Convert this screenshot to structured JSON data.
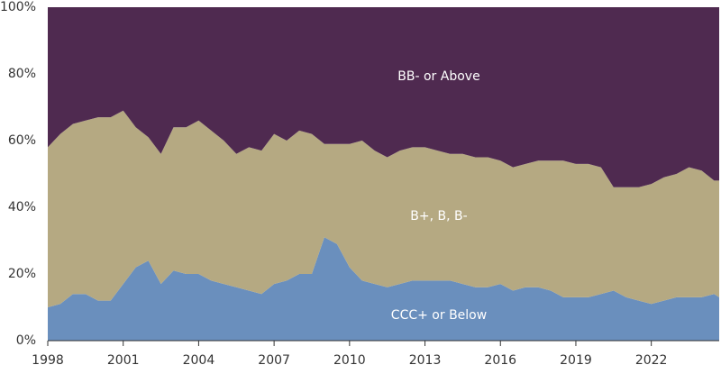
{
  "chart_data": {
    "type": "stacked_area",
    "x": [
      1998,
      1998.5,
      1999,
      1999.5,
      2000,
      2000.5,
      2001,
      2001.5,
      2002,
      2002.5,
      2003,
      2003.5,
      2004,
      2004.5,
      2005,
      2005.5,
      2006,
      2006.5,
      2007,
      2007.5,
      2008,
      2008.5,
      2009,
      2009.5,
      2010,
      2010.5,
      2011,
      2011.5,
      2012,
      2012.5,
      2013,
      2013.5,
      2014,
      2014.5,
      2015,
      2015.5,
      2016,
      2016.5,
      2017,
      2017.5,
      2018,
      2018.5,
      2019,
      2019.5,
      2020,
      2020.5,
      2021,
      2021.5,
      2022,
      2022.5,
      2023,
      2023.5,
      2024,
      2024.5,
      2024.7
    ],
    "series": [
      {
        "name": "CCC+ or Below",
        "color": "#6a8fbd",
        "values": [
          10,
          11,
          14,
          14,
          12,
          12,
          17,
          22,
          24,
          17,
          21,
          20,
          20,
          18,
          17,
          16,
          15,
          14,
          17,
          18,
          20,
          20,
          31,
          29,
          22,
          18,
          17,
          16,
          17,
          18,
          18,
          18,
          18,
          17,
          16,
          16,
          17,
          15,
          16,
          16,
          15,
          13,
          13,
          13,
          14,
          15,
          13,
          12,
          11,
          12,
          13,
          13,
          13,
          14,
          13
        ]
      },
      {
        "name": "B+, B, B-",
        "color": "#b5a982",
        "values": [
          48,
          51,
          51,
          52,
          55,
          55,
          52,
          42,
          37,
          39,
          43,
          44,
          46,
          45,
          43,
          40,
          43,
          43,
          45,
          42,
          43,
          42,
          28,
          30,
          37,
          42,
          40,
          39,
          40,
          40,
          40,
          39,
          38,
          39,
          39,
          39,
          37,
          37,
          37,
          38,
          39,
          41,
          40,
          40,
          38,
          31,
          33,
          34,
          36,
          37,
          37,
          39,
          38,
          34,
          35
        ]
      },
      {
        "name": "BB- or Above",
        "color": "#4f2a50",
        "values": [
          42,
          38,
          35,
          34,
          33,
          33,
          31,
          36,
          39,
          44,
          36,
          36,
          34,
          37,
          40,
          44,
          42,
          43,
          38,
          40,
          37,
          38,
          41,
          41,
          41,
          40,
          43,
          45,
          43,
          42,
          42,
          43,
          44,
          44,
          45,
          45,
          46,
          48,
          47,
          46,
          46,
          46,
          47,
          47,
          48,
          54,
          54,
          54,
          53,
          51,
          50,
          48,
          49,
          52,
          52
        ]
      }
    ],
    "xlim": [
      1998,
      2024.7
    ],
    "xticks": [
      1998,
      2001,
      2004,
      2007,
      2010,
      2013,
      2016,
      2019,
      2022
    ],
    "ylim": [
      0,
      100
    ],
    "yticks": [
      {
        "value": 0,
        "label": "0%"
      },
      {
        "value": 20,
        "label": "20%"
      },
      {
        "value": 40,
        "label": "40%"
      },
      {
        "value": 60,
        "label": "60%"
      },
      {
        "value": 80,
        "label": "80%"
      },
      {
        "value": 100,
        "label": "100%"
      }
    ],
    "grid": false
  }
}
